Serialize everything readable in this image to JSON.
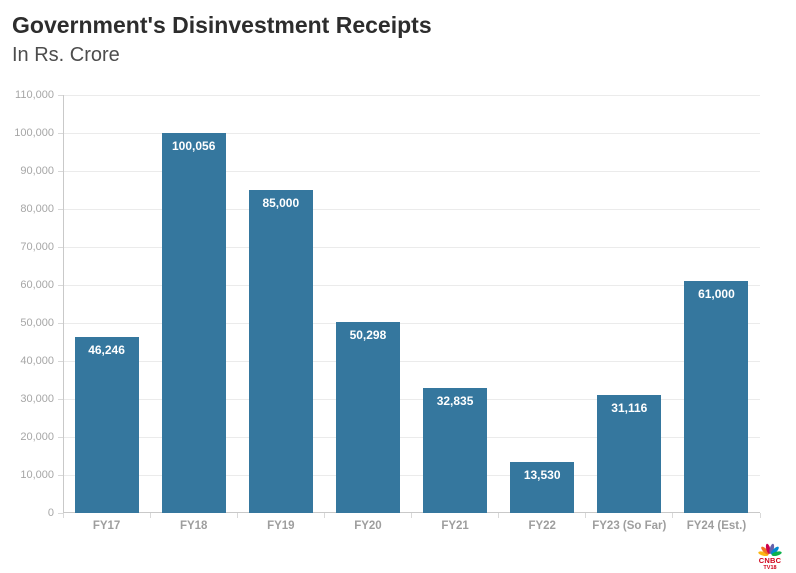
{
  "header": {
    "title": "Government's Disinvestment Receipts",
    "subtitle": "In Rs. Crore"
  },
  "chart_data": {
    "type": "bar",
    "title": "Government's Disinvestment Receipts",
    "subtitle": "In Rs. Crore",
    "categories": [
      "FY17",
      "FY18",
      "FY19",
      "FY20",
      "FY21",
      "FY22",
      "FY23 (So Far)",
      "FY24 (Est.)"
    ],
    "values": [
      46246,
      100056,
      85000,
      50298,
      32835,
      13530,
      31116,
      61000
    ],
    "value_labels": [
      "46,246",
      "100,056",
      "85,000",
      "50,298",
      "32,835",
      "13,530",
      "31,116",
      "61,000"
    ],
    "xlabel": "",
    "ylabel": "",
    "ylim": [
      0,
      110000
    ],
    "ytick_interval": 10000,
    "ytick_labels": [
      "0",
      "10,000",
      "20,000",
      "30,000",
      "40,000",
      "50,000",
      "60,000",
      "70,000",
      "80,000",
      "90,000",
      "100,000",
      "110,000"
    ],
    "grid": true,
    "legend": false,
    "bar_color": "#35779E",
    "value_label_color": "#ffffff"
  },
  "branding": {
    "cnbc": "CNBC",
    "tv18": "TV18",
    "text_color": "#d0021b",
    "peacock_colors": [
      "#FCB711",
      "#F37021",
      "#CC004C",
      "#6460AA",
      "#0089D0",
      "#0DB14B"
    ]
  }
}
